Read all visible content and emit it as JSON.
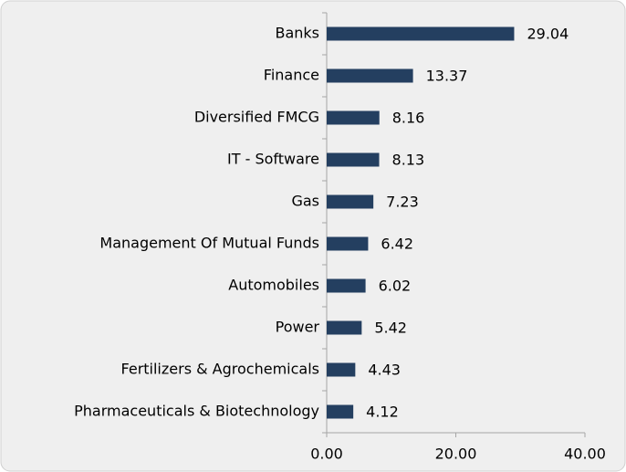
{
  "chart_data": {
    "type": "bar",
    "orientation": "horizontal",
    "categories": [
      "Banks",
      "Finance",
      "Diversified FMCG",
      "IT - Software",
      "Gas",
      "Management Of Mutual Funds",
      "Automobiles",
      "Power",
      "Fertilizers & Agrochemicals",
      "Pharmaceuticals & Biotechnology"
    ],
    "values": [
      29.04,
      13.37,
      8.16,
      8.13,
      7.23,
      6.42,
      6.02,
      5.42,
      4.43,
      4.12
    ],
    "color": "#243f60",
    "xlim": [
      0,
      40
    ],
    "xticks": [
      {
        "value": 0,
        "label": "0.00"
      },
      {
        "value": 20,
        "label": "20.00"
      },
      {
        "value": 40,
        "label": "40.00"
      }
    ],
    "grid": false
  }
}
